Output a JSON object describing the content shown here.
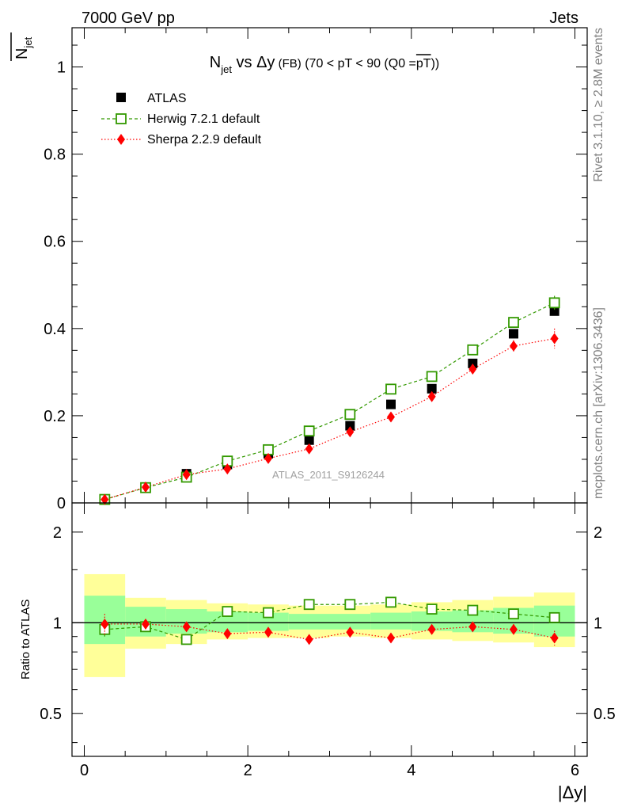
{
  "header": {
    "energy_label": "7000 GeV pp",
    "category_label": "Jets"
  },
  "side_labels": {
    "rivet": "Rivet 3.1.10, ≥ 2.8M events",
    "mcplots": "mcplots.cern.ch [arXiv:1306.3436]"
  },
  "watermark": "ATLAS_2011_S9126244",
  "title": {
    "n": "N",
    "n_sub": "jet",
    "vs": " vs Δy",
    "fb": " (FB)",
    "range": " (70 < pT <  90 (Q0 =",
    "pt_bar": "pT",
    "close": "))"
  },
  "ylabel_main": {
    "n": "N",
    "sub": "jet"
  },
  "ylabel_ratio": "Ratio to ATLAS",
  "xlabel": "|Δy|",
  "legend": {
    "atlas": "ATLAS",
    "herwig": "Herwig 7.2.1 default",
    "sherpa": "Sherpa 2.2.9 default"
  },
  "colors": {
    "atlas": "#000000",
    "herwig": "#339900",
    "sherpa": "#ff0000",
    "band_outer": "#ffff99",
    "band_inner": "#99ff99"
  },
  "chart_data": [
    {
      "type": "scatter",
      "panel": "main",
      "title": "N_jet vs Δy (FB) (70 < pT < 90 (Q0 = pT-bar))",
      "xlabel": "|Δy|",
      "ylabel": "N_jet-bar",
      "xlim": [
        -0.15,
        6.15
      ],
      "ylim": [
        0,
        1.09
      ],
      "x_ticks": [
        0,
        2,
        4,
        6
      ],
      "y_ticks": [
        0,
        0.2,
        0.4,
        0.6,
        0.8,
        1
      ],
      "y_tick_labels": [
        "0",
        "0.2",
        "0.4",
        "0.6",
        "0.8",
        "1"
      ],
      "x": [
        0.25,
        0.75,
        1.25,
        1.75,
        2.25,
        2.75,
        3.25,
        3.75,
        4.25,
        4.75,
        5.25,
        5.75
      ],
      "series": [
        {
          "name": "ATLAS",
          "values": [
            0.008,
            0.036,
            0.067,
            0.088,
            0.113,
            0.144,
            0.177,
            0.226,
            0.262,
            0.32,
            0.388,
            0.44
          ]
        },
        {
          "name": "Herwig 7.2.1 default",
          "values": [
            0.008,
            0.035,
            0.059,
            0.096,
            0.122,
            0.165,
            0.203,
            0.261,
            0.29,
            0.351,
            0.414,
            0.459
          ],
          "errors": [
            0.001,
            0.001,
            0.002,
            0.002,
            0.003,
            0.004,
            0.004,
            0.005,
            0.006,
            0.007,
            0.011,
            0.016
          ]
        },
        {
          "name": "Sherpa 2.2.9 default",
          "values": [
            0.008,
            0.036,
            0.065,
            0.078,
            0.102,
            0.124,
            0.163,
            0.197,
            0.244,
            0.307,
            0.36,
            0.377
          ],
          "errors": [
            0.001,
            0.001,
            0.002,
            0.002,
            0.003,
            0.004,
            0.004,
            0.005,
            0.006,
            0.009,
            0.013,
            0.023
          ]
        }
      ]
    },
    {
      "type": "scatter",
      "panel": "ratio",
      "ylabel": "Ratio to ATLAS",
      "xlabel": "|Δy|",
      "xlim": [
        -0.15,
        6.15
      ],
      "ylim": [
        0.36,
        2.5
      ],
      "y_scale": "log",
      "x_ticks": [
        0,
        2,
        4,
        6
      ],
      "x_tick_labels": [
        "0",
        "2",
        "4",
        "6"
      ],
      "y_ticks": [
        0.5,
        1,
        2
      ],
      "y_tick_labels": [
        "0.5",
        "1",
        "2"
      ],
      "x": [
        0.25,
        0.75,
        1.25,
        1.75,
        2.25,
        2.75,
        3.25,
        3.75,
        4.25,
        4.75,
        5.25,
        5.75
      ],
      "bins": [
        [
          0,
          0.5
        ],
        [
          0.5,
          1
        ],
        [
          1,
          1.5
        ],
        [
          1.5,
          2
        ],
        [
          2,
          2.5
        ],
        [
          2.5,
          3
        ],
        [
          3,
          3.5
        ],
        [
          3.5,
          4
        ],
        [
          4,
          4.5
        ],
        [
          4.5,
          5
        ],
        [
          5,
          5.5
        ],
        [
          5.5,
          6
        ]
      ],
      "band_outer": [
        [
          0.66,
          1.45
        ],
        [
          0.82,
          1.21
        ],
        [
          0.85,
          1.19
        ],
        [
          0.88,
          1.16
        ],
        [
          0.89,
          1.15
        ],
        [
          0.89,
          1.14
        ],
        [
          0.9,
          1.14
        ],
        [
          0.89,
          1.15
        ],
        [
          0.88,
          1.17
        ],
        [
          0.87,
          1.19
        ],
        [
          0.86,
          1.22
        ],
        [
          0.83,
          1.26
        ]
      ],
      "band_inner": [
        [
          0.85,
          1.23
        ],
        [
          0.9,
          1.13
        ],
        [
          0.92,
          1.11
        ],
        [
          0.93,
          1.09
        ],
        [
          0.94,
          1.08
        ],
        [
          0.95,
          1.07
        ],
        [
          0.95,
          1.07
        ],
        [
          0.95,
          1.08
        ],
        [
          0.94,
          1.09
        ],
        [
          0.93,
          1.1
        ],
        [
          0.92,
          1.12
        ],
        [
          0.9,
          1.14
        ]
      ],
      "series": [
        {
          "name": "Herwig 7.2.1 default",
          "values": [
            0.95,
            0.97,
            0.88,
            1.09,
            1.08,
            1.15,
            1.15,
            1.17,
            1.11,
            1.1,
            1.07,
            1.04
          ],
          "errors": [
            0.05,
            0.03,
            0.03,
            0.02,
            0.02,
            0.02,
            0.02,
            0.02,
            0.02,
            0.02,
            0.03,
            0.04
          ]
        },
        {
          "name": "Sherpa 2.2.9 default",
          "values": [
            0.99,
            0.99,
            0.97,
            0.92,
            0.93,
            0.88,
            0.93,
            0.89,
            0.95,
            0.97,
            0.95,
            0.89
          ],
          "errors": [
            0.08,
            0.03,
            0.03,
            0.02,
            0.02,
            0.02,
            0.02,
            0.02,
            0.02,
            0.03,
            0.04,
            0.05
          ]
        }
      ]
    }
  ]
}
